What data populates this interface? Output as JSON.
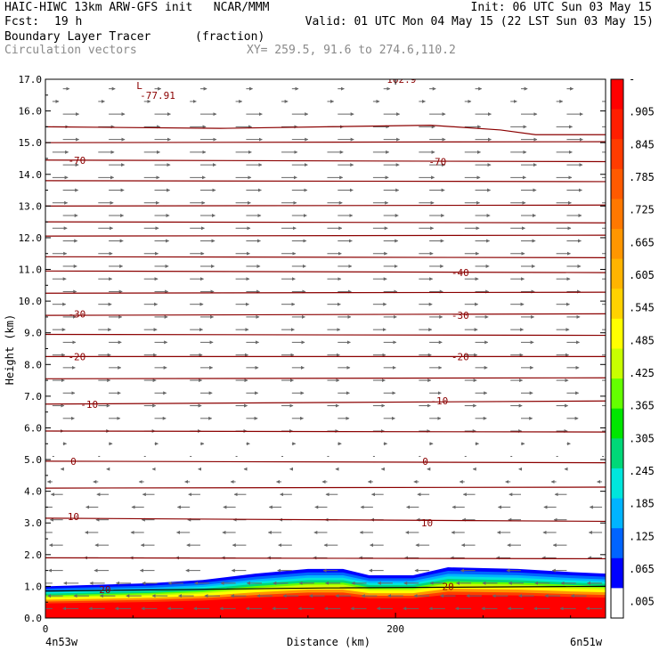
{
  "header": {
    "title_left": "HAIC-HIWC 13km ARW-GFS init   NCAR/MMM",
    "init": "Init: 06 UTC Sun 03 May 15",
    "fcst_label": "Fcst:",
    "fcst_value": "19 h",
    "valid": "Valid: 01 UTC Mon 04 May 15 (22 LST Sun 03 May 15)",
    "field_name": "Boundary Layer Tracer",
    "field_units": "(fraction)",
    "overlay": "Circulation vectors",
    "xy": "XY= 259.5, 91.6 to 274.6,110.2"
  },
  "chart_data": {
    "type": "heatmap",
    "ylabel": "Height (km)",
    "xlabel": "Distance (km)",
    "x_end_labels": [
      "4n53w",
      "6n51w"
    ],
    "xlim": [
      0,
      320
    ],
    "ylim": [
      0,
      17
    ],
    "x_ticks": [
      0,
      200
    ],
    "y_ticks": [
      0.0,
      1.0,
      2.0,
      3.0,
      4.0,
      5.0,
      6.0,
      7.0,
      8.0,
      9.0,
      10.0,
      11.0,
      12.0,
      13.0,
      14.0,
      15.0,
      16.0,
      17.0
    ],
    "colorbar": {
      "labels": [
        "-",
        ".905",
        ".845",
        ".785",
        ".725",
        ".665",
        ".605",
        ".545",
        ".485",
        ".425",
        ".365",
        ".305",
        ".245",
        ".185",
        ".125",
        ".065",
        ".005"
      ],
      "colors": [
        "#ff0000",
        "#ff1e00",
        "#ff3c00",
        "#ff5a00",
        "#ff7800",
        "#ff9600",
        "#ffb400",
        "#ffd200",
        "#ffff00",
        "#c8ff00",
        "#64ff00",
        "#00e600",
        "#00d878",
        "#00e6dc",
        "#00b4ff",
        "#0064ff",
        "#0000ff",
        "#ffffff"
      ]
    },
    "tracer_top_km": [
      {
        "x": 0,
        "y": 1.0
      },
      {
        "x": 30,
        "y": 1.05
      },
      {
        "x": 60,
        "y": 1.1
      },
      {
        "x": 90,
        "y": 1.2
      },
      {
        "x": 120,
        "y": 1.4
      },
      {
        "x": 150,
        "y": 1.55
      },
      {
        "x": 170,
        "y": 1.55
      },
      {
        "x": 185,
        "y": 1.35
      },
      {
        "x": 210,
        "y": 1.35
      },
      {
        "x": 230,
        "y": 1.6
      },
      {
        "x": 270,
        "y": 1.55
      },
      {
        "x": 300,
        "y": 1.45
      },
      {
        "x": 320,
        "y": 1.4
      }
    ],
    "temperature_contours": [
      {
        "value": 20,
        "label": "20",
        "points": [
          {
            "x": 0,
            "y": 0.85
          },
          {
            "x": 160,
            "y": 0.95
          },
          {
            "x": 320,
            "y": 1.0
          }
        ],
        "labels_at": [
          {
            "x": 34,
            "y": 0.9
          },
          {
            "x": 230,
            "y": 1.0
          }
        ]
      },
      {
        "value": 10,
        "label": "10",
        "points": [
          {
            "x": 0,
            "y": 3.15
          },
          {
            "x": 320,
            "y": 3.05
          }
        ],
        "labels_at": [
          {
            "x": 16,
            "y": 3.2
          },
          {
            "x": 218,
            "y": 3.0
          }
        ]
      },
      {
        "value": 0,
        "label": "0",
        "points": [
          {
            "x": 0,
            "y": 4.95
          },
          {
            "x": 320,
            "y": 4.9
          }
        ],
        "labels_at": [
          {
            "x": 16,
            "y": 4.95
          },
          {
            "x": 217,
            "y": 4.95
          }
        ]
      },
      {
        "value": -10,
        "label": "-10",
        "points": [
          {
            "x": 0,
            "y": 6.75
          },
          {
            "x": 320,
            "y": 6.85
          }
        ],
        "labels_at": [
          {
            "x": 25,
            "y": 6.75
          },
          {
            "x": 225,
            "y": 6.85
          }
        ]
      },
      {
        "value": -20,
        "label": "-20",
        "points": [
          {
            "x": 0,
            "y": 8.25
          },
          {
            "x": 320,
            "y": 8.25
          }
        ],
        "labels_at": [
          {
            "x": 18,
            "y": 8.25
          },
          {
            "x": 237,
            "y": 8.25
          }
        ]
      },
      {
        "value": -30,
        "label": "-30",
        "points": [
          {
            "x": 0,
            "y": 9.55
          },
          {
            "x": 320,
            "y": 9.6
          }
        ],
        "labels_at": [
          {
            "x": 18,
            "y": 9.6
          },
          {
            "x": 237,
            "y": 9.55
          }
        ]
      },
      {
        "value": -40,
        "label": "-40",
        "points": [
          {
            "x": 0,
            "y": 10.95
          },
          {
            "x": 320,
            "y": 10.9
          }
        ],
        "labels_at": [
          {
            "x": 237,
            "y": 10.9
          }
        ]
      },
      {
        "value": -70,
        "label": "-70",
        "points": [
          {
            "x": 0,
            "y": 14.45
          },
          {
            "x": 320,
            "y": 14.4
          }
        ],
        "labels_at": [
          {
            "x": 18,
            "y": 14.45
          },
          {
            "x": 224,
            "y": 14.4
          }
        ]
      }
    ],
    "other_isotherms_km": [
      1.9,
      4.1,
      5.9,
      7.55,
      8.95,
      10.25,
      11.4,
      12.05,
      12.5,
      13.0,
      13.8,
      15.0
    ],
    "tropopause_line": [
      {
        "x": 0,
        "y": 15.5
      },
      {
        "x": 100,
        "y": 15.45
      },
      {
        "x": 220,
        "y": 15.55
      },
      {
        "x": 260,
        "y": 15.4
      },
      {
        "x": 280,
        "y": 15.25
      },
      {
        "x": 320,
        "y": 15.25
      }
    ],
    "annotations": [
      {
        "text": "L",
        "x": 52,
        "y": 16.8
      },
      {
        "text": "-77.91",
        "x": 54,
        "y": 16.5
      },
      {
        "text": "162.9",
        "x": 195,
        "y": 17.0
      }
    ]
  },
  "vectors": {
    "upper_direction": "east",
    "lower_direction": "west",
    "transition_km": 5.0
  }
}
